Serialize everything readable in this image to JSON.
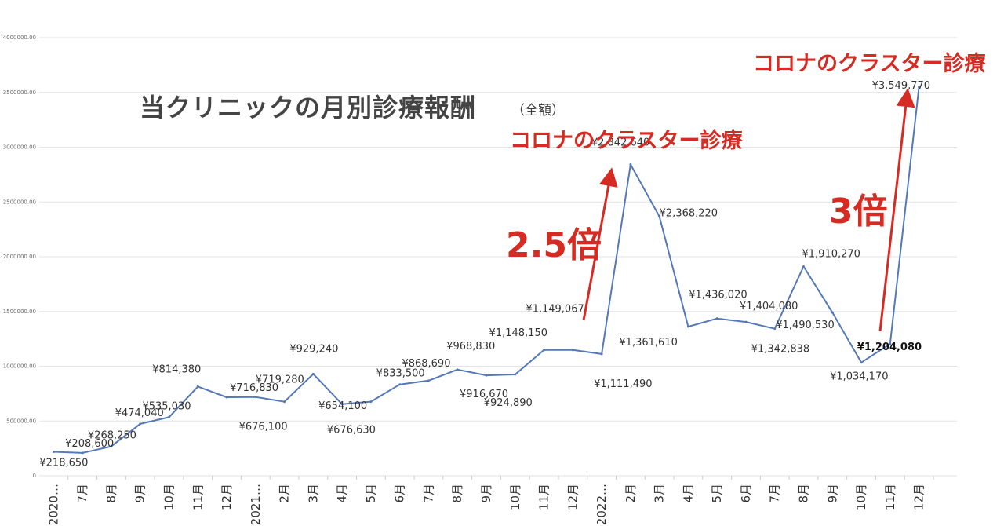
{
  "chart_data": {
    "type": "line",
    "title": "当クリニックの月別診療報酬",
    "title_note": "（全額）",
    "categories": [
      "2020…",
      "7月",
      "8月",
      "9月",
      "10月",
      "11月",
      "12月",
      "2021…",
      "2月",
      "3月",
      "4月",
      "5月",
      "6月",
      "7月",
      "8月",
      "9月",
      "10月",
      "11月",
      "12月",
      "2022…",
      "2月",
      "3月",
      "4月",
      "5月",
      "6月",
      "7月",
      "8月",
      "9月",
      "10月",
      "11月",
      "12月"
    ],
    "series": [
      {
        "color": "#5579b8",
        "values": [
          218650,
          208600,
          268250,
          474040,
          535030,
          814380,
          716830,
          719280,
          676100,
          929240,
          654100,
          676630,
          833500,
          868690,
          968830,
          916670,
          924890,
          1148150,
          1149067,
          1111490,
          2842640,
          2368220,
          1361610,
          1436020,
          1404080,
          1342838,
          1910270,
          1490530,
          1034170,
          1204080,
          3549770
        ]
      }
    ],
    "data_labels": [
      {
        "text": "¥218,650",
        "i": 0
      },
      {
        "text": "¥208,600",
        "i": 1
      },
      {
        "text": "¥268,250",
        "i": 2
      },
      {
        "text": "¥474,040",
        "i": 3
      },
      {
        "text": "¥535,030",
        "i": 4
      },
      {
        "text": "¥814,380",
        "i": 5
      },
      {
        "text": "¥716,830",
        "i": 6
      },
      {
        "text": "¥719,280",
        "i": 7
      },
      {
        "text": "¥676,100",
        "i": 8
      },
      {
        "text": "¥929,240",
        "i": 9
      },
      {
        "text": "¥654,100",
        "i": 10
      },
      {
        "text": "¥676,630",
        "i": 11
      },
      {
        "text": "¥833,500",
        "i": 12
      },
      {
        "text": "¥868,690",
        "i": 13
      },
      {
        "text": "¥968,830",
        "i": 14
      },
      {
        "text": "¥916,670",
        "i": 15
      },
      {
        "text": "¥924,890",
        "i": 16
      },
      {
        "text": "¥1,148,150",
        "i": 17
      },
      {
        "text": "¥1,149,067",
        "i": 18
      },
      {
        "text": "¥1,111,490",
        "i": 19
      },
      {
        "text": "¥2,842,640",
        "i": 20
      },
      {
        "text": "¥2,368,220",
        "i": 21
      },
      {
        "text": "¥1,361,610",
        "i": 22
      },
      {
        "text": "¥1,436,020",
        "i": 23
      },
      {
        "text": "¥1,404,080",
        "i": 24
      },
      {
        "text": "¥1,342,838",
        "i": 25
      },
      {
        "text": "¥1,910,270",
        "i": 26
      },
      {
        "text": "¥1,490,530",
        "i": 27
      },
      {
        "text": "¥1,034,170",
        "i": 28
      },
      {
        "text": "¥1,204,080",
        "i": 29
      },
      {
        "text": "¥3,549,770",
        "i": 30
      }
    ],
    "ylim": [
      0,
      4000000
    ],
    "yticks": [
      "0",
      "500000.00",
      "1000000.00",
      "1500000.00",
      "2000000.00",
      "2500000.00",
      "3000000.00",
      "3500000.00",
      "4000000.00"
    ],
    "grid": true,
    "annotations": {
      "cluster_1": "コロナのクラスター診療",
      "cluster_2": "コロナのクラスター診療",
      "multiplier_1": "2.5倍",
      "multiplier_2": "3倍",
      "accent_color": "#d62b22"
    }
  }
}
